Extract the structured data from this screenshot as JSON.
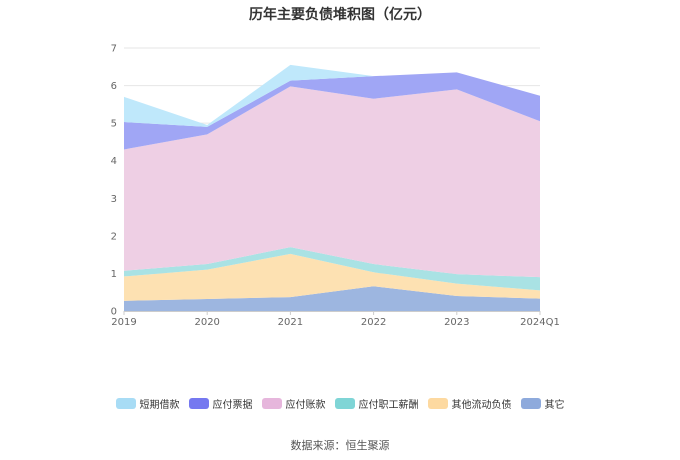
{
  "chart_data": {
    "type": "area",
    "stacked": true,
    "title": "历年主要负债堆积图（亿元）",
    "categories": [
      "2019",
      "2020",
      "2021",
      "2022",
      "2023",
      "2024Q1"
    ],
    "ylim": [
      0,
      7
    ],
    "yticks": [
      "0",
      "1",
      "2",
      "3",
      "4",
      "5",
      "6",
      "7"
    ],
    "grid": true,
    "legend_position": "bottom",
    "series": [
      {
        "name": "其它",
        "color": "#9db6e0",
        "values": [
          0.27,
          0.32,
          0.37,
          0.66,
          0.4,
          0.33
        ]
      },
      {
        "name": "其他流动负债",
        "color": "#fde1b2",
        "values": [
          0.65,
          0.78,
          1.15,
          0.37,
          0.33,
          0.22
        ]
      },
      {
        "name": "应付职工薪酬",
        "color": "#a9e2e4",
        "values": [
          0.15,
          0.15,
          0.18,
          0.22,
          0.25,
          0.35
        ]
      },
      {
        "name": "应付账款",
        "color": "#eecfe4",
        "values": [
          3.23,
          3.45,
          4.28,
          4.4,
          4.92,
          4.15
        ]
      },
      {
        "name": "应付票据",
        "color": "#a0a6f5",
        "values": [
          0.73,
          0.2,
          0.15,
          0.6,
          0.45,
          0.68
        ]
      },
      {
        "name": "短期借款",
        "color": "#bfe8fb",
        "values": [
          0.67,
          0.05,
          0.42,
          0.0,
          0.0,
          0.0
        ]
      }
    ]
  },
  "legend": [
    {
      "label": "短期借款",
      "color": "#a8dcf5"
    },
    {
      "label": "应付票据",
      "color": "#7578f0"
    },
    {
      "label": "应付账款",
      "color": "#e6b6dc"
    },
    {
      "label": "应付职工薪酬",
      "color": "#7fd5d6"
    },
    {
      "label": "其他流动负债",
      "color": "#fdd9a0"
    },
    {
      "label": "其它",
      "color": "#8eaadc"
    }
  ],
  "source": "数据来源：恒生聚源"
}
